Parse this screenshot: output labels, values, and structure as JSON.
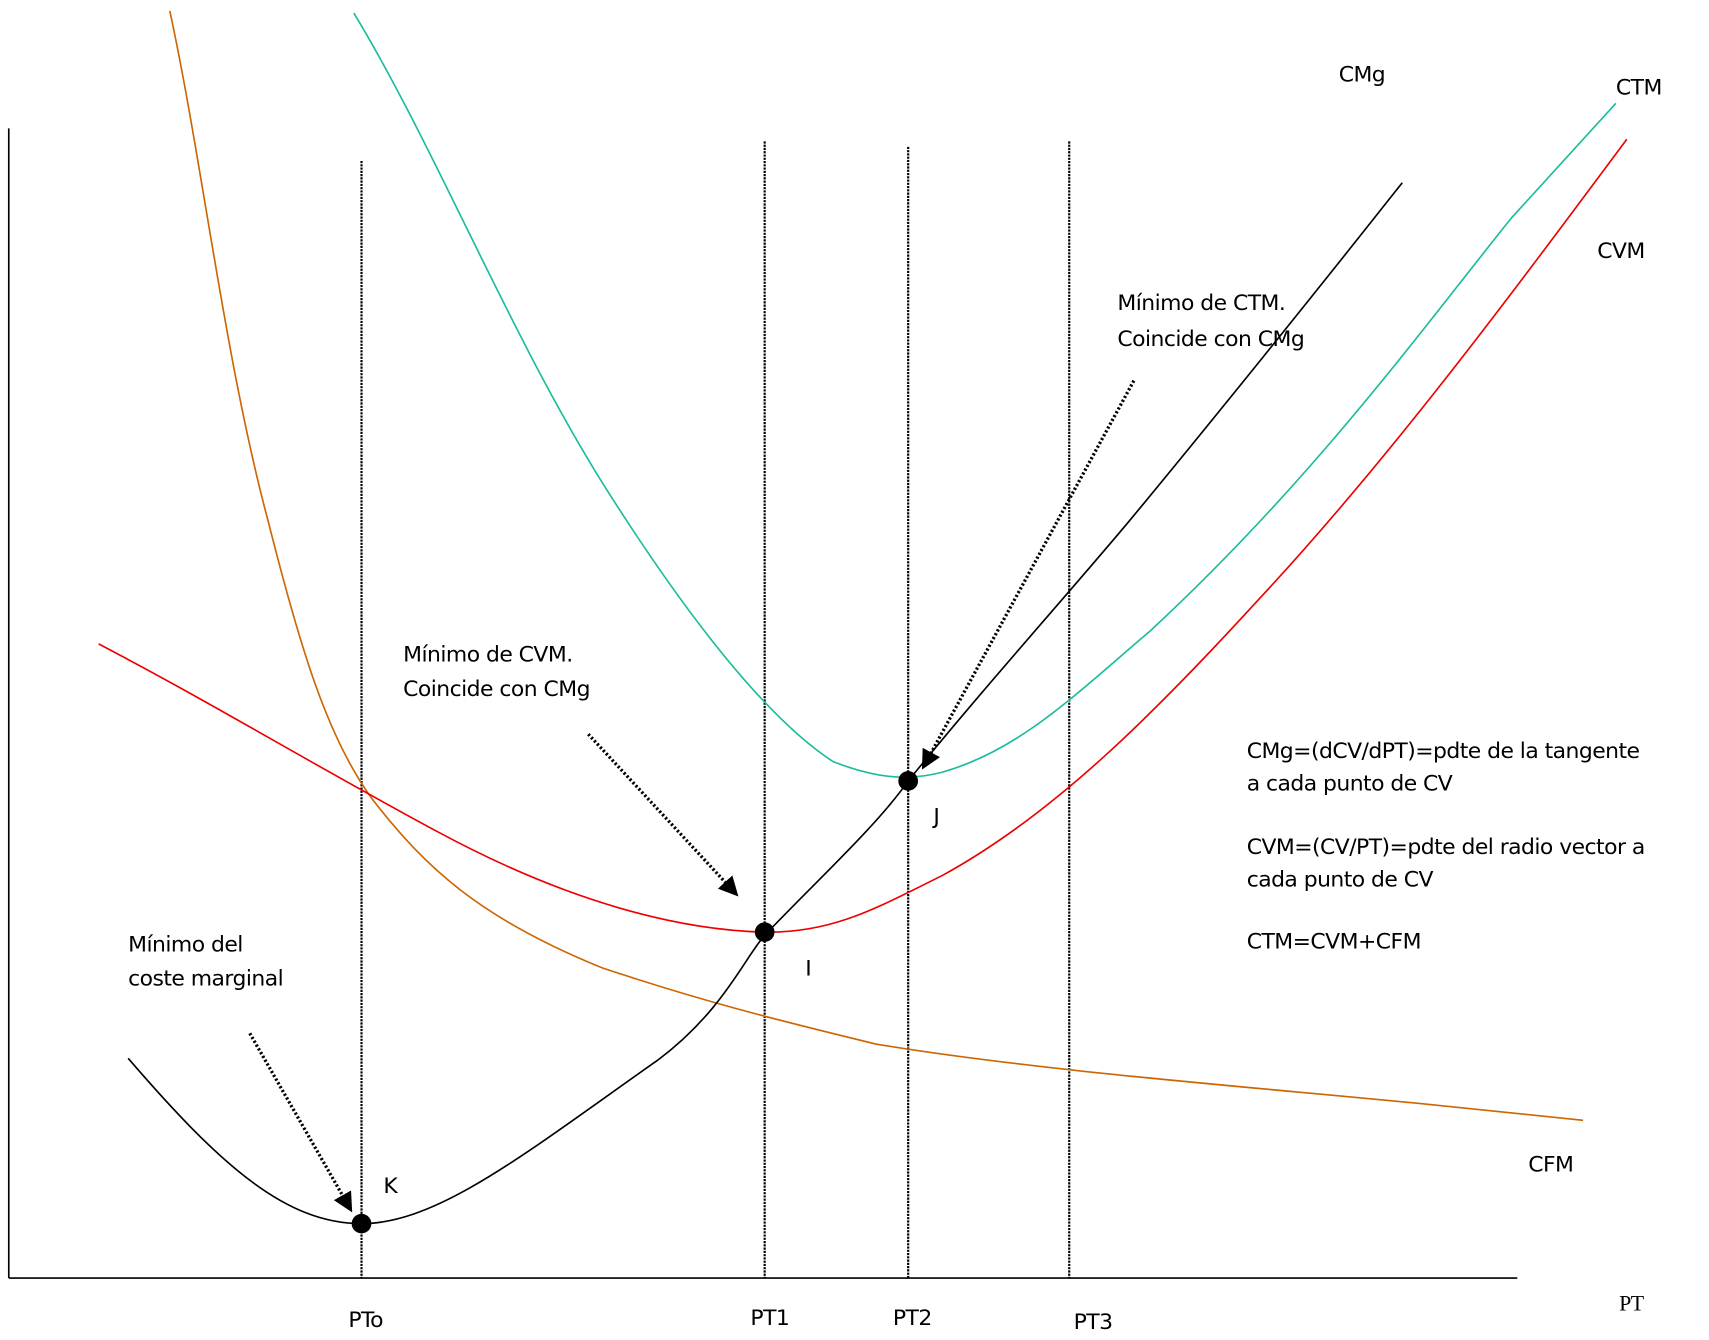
{
  "curves": [
    {
      "label": "CMg"
    },
    {
      "label": "CTM"
    },
    {
      "label": "CVM"
    },
    {
      "label": "CFM"
    }
  ],
  "axis_label": "PT",
  "quantities": [
    "PTo",
    "PT1",
    "PT2",
    "PT3"
  ],
  "points": [
    "K",
    "I",
    "J"
  ],
  "annotations": [
    {
      "lines": [
        "Mínimo de CTM.",
        "Coincide con CMg"
      ]
    },
    {
      "lines": [
        "Mínimo de CVM.",
        "Coincide con CMg"
      ]
    },
    {
      "lines": [
        "Mínimo del",
        "coste marginal"
      ]
    }
  ],
  "formulas": [
    [
      "CMg=(dCV/dPT)=pdte de la tangente",
      "a cada punto de CV"
    ],
    [
      "CVM=(CV/PT)=pdte del radio vector a",
      "cada punto de CV"
    ],
    [
      "CTM=CVM+CFM"
    ]
  ]
}
